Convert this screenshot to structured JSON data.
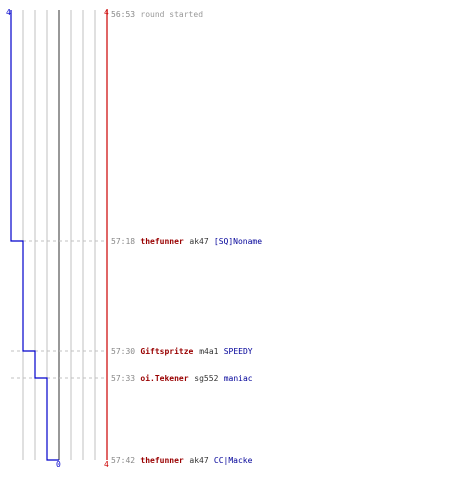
{
  "chart_data": {
    "type": "line",
    "grid": true,
    "scale": {
      "left_top_label": "4",
      "right_top_label": "4",
      "bottom_center_label": "0",
      "right_bottom_label": "4"
    },
    "series": [
      {
        "values": [
          4,
          3,
          2,
          1,
          0
        ],
        "color": "#0000cc"
      },
      {
        "values": [
          4,
          4,
          4,
          4,
          4
        ],
        "color": "#cc0000"
      }
    ],
    "events": [
      {
        "time": "56:53",
        "parts": [
          {
            "text": "round started",
            "color": "#999999"
          }
        ]
      },
      {
        "time": "57:18",
        "parts": [
          {
            "text": "thefunner",
            "color": "#990000"
          },
          {
            "text": "ak47",
            "color": "#333333"
          },
          {
            "text": "[SQ]Noname",
            "color": "#000099"
          }
        ]
      },
      {
        "time": "57:30",
        "parts": [
          {
            "text": "Giftspritze",
            "color": "#990000"
          },
          {
            "text": "m4a1",
            "color": "#333333"
          },
          {
            "text": "SPEEDY",
            "color": "#000099"
          }
        ]
      },
      {
        "time": "57:33",
        "parts": [
          {
            "text": "oi.Tekener",
            "color": "#990000"
          },
          {
            "text": "sg552",
            "color": "#333333"
          },
          {
            "text": "maniac",
            "color": "#000099"
          }
        ]
      },
      {
        "time": "57:42",
        "parts": [
          {
            "text": "thefunner",
            "color": "#990000"
          },
          {
            "text": "ak47",
            "color": "#333333"
          },
          {
            "text": "CC|Macke",
            "color": "#000099"
          }
        ]
      }
    ],
    "colors": {
      "grid": "#c0c0c0",
      "center_line": "#777777",
      "dash": "#c0c0c0",
      "time": "#888888"
    }
  }
}
